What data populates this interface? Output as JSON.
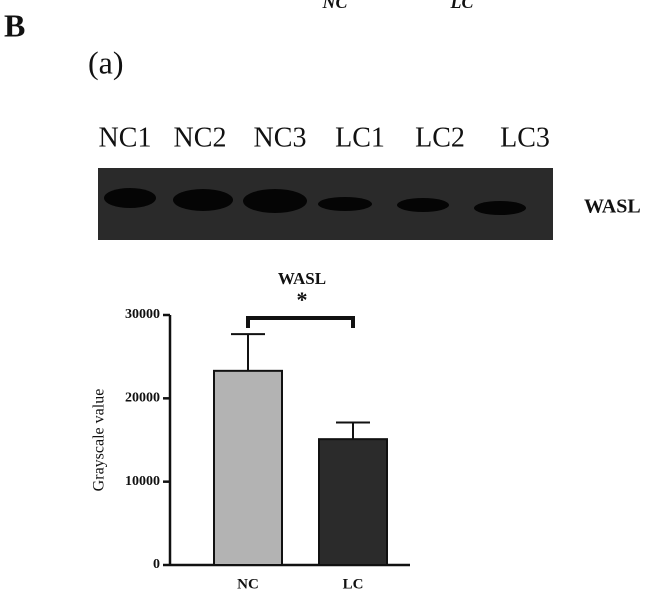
{
  "top_labels": [
    "NC",
    "LC"
  ],
  "panel_label": "B",
  "subpanel_label": "(a)",
  "blot": {
    "lanes": [
      "NC1",
      "NC2",
      "NC3",
      "LC1",
      "LC2",
      "LC3"
    ],
    "protein": "WASL"
  },
  "chart_data": {
    "type": "bar",
    "title": "WASL",
    "annotation": "*",
    "y_label": "Grayscale value",
    "categories": [
      "NC",
      "LC"
    ],
    "values": [
      23300,
      15100
    ],
    "errors": [
      4400,
      2000
    ],
    "colors": [
      "#b3b3b3",
      "#2b2b2b"
    ],
    "ylim": [
      0,
      30000
    ],
    "yticks": [
      0,
      10000,
      20000,
      30000
    ]
  }
}
